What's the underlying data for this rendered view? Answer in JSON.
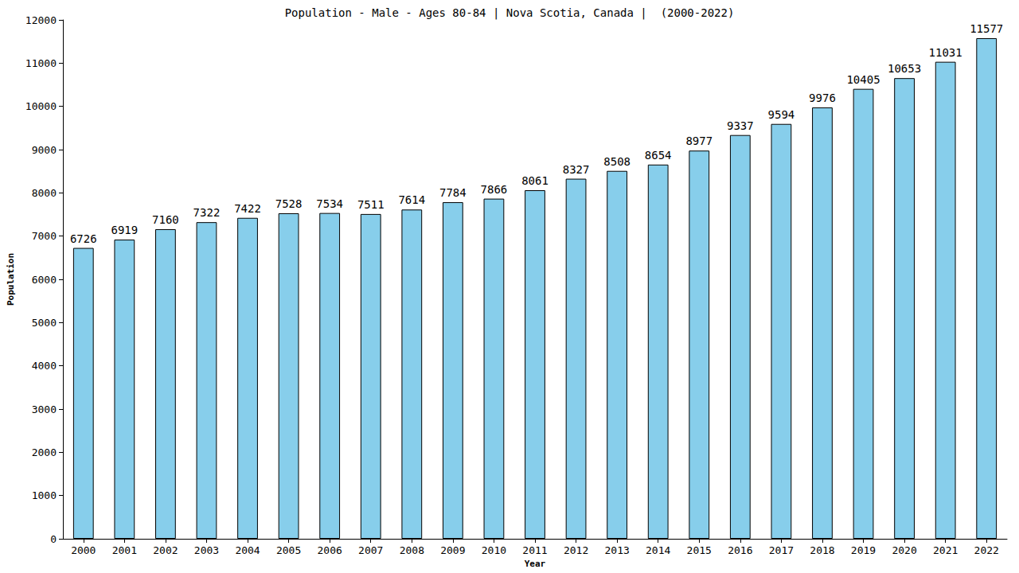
{
  "chart_data": {
    "type": "bar",
    "title": "Population - Male - Ages 80-84 | Nova Scotia, Canada |  (2000-2022)",
    "x_label": "Year",
    "y_label": "Population",
    "categories": [
      "2000",
      "2001",
      "2002",
      "2003",
      "2004",
      "2005",
      "2006",
      "2007",
      "2008",
      "2009",
      "2010",
      "2011",
      "2012",
      "2013",
      "2014",
      "2015",
      "2016",
      "2017",
      "2018",
      "2019",
      "2020",
      "2021",
      "2022"
    ],
    "values": [
      6726,
      6919,
      7160,
      7322,
      7422,
      7528,
      7534,
      7511,
      7614,
      7784,
      7866,
      8061,
      8327,
      8508,
      8654,
      8977,
      9337,
      9594,
      9976,
      10405,
      10653,
      11031,
      11577
    ],
    "color": "#87ceeb",
    "ylim": [
      0,
      12000
    ],
    "yticks": [
      0,
      1000,
      2000,
      3000,
      4000,
      5000,
      6000,
      7000,
      8000,
      9000,
      10000,
      11000,
      12000
    ],
    "grid": false,
    "data_labels": true
  }
}
